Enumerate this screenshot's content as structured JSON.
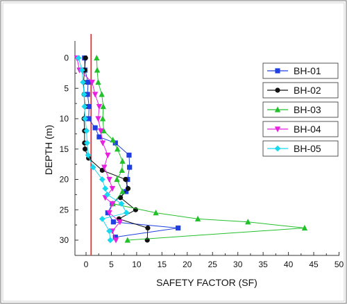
{
  "chart_data": {
    "type": "line",
    "title": "",
    "xlabel": "SAFETY FACTOR (SF)",
    "ylabel": "DEPTH (m)",
    "xlim": [
      -2,
      50
    ],
    "ylim": [
      -3,
      32
    ],
    "y_inverted": true,
    "x_ticks": [
      0,
      5,
      10,
      15,
      20,
      25,
      30,
      35,
      40,
      45,
      50
    ],
    "y_ticks": [
      0,
      5,
      10,
      15,
      20,
      25,
      30
    ],
    "x_tick_labels": [
      "0",
      "5",
      "10",
      "15",
      "20",
      "25",
      "30",
      "35",
      "40",
      "45",
      "50"
    ],
    "y_tick_labels": [
      "0",
      "5",
      "10",
      "15",
      "20",
      "25",
      "30"
    ],
    "grid": false,
    "legend_position": "right",
    "reference_line": {
      "x": 1,
      "color": "#e8303a"
    },
    "series": [
      {
        "name": "BH-01",
        "color": "#1f3fe0",
        "marker": "square",
        "x": [
          -0.3,
          -0.2,
          0.4,
          0.3,
          0.6,
          0.5,
          1.8,
          2.6,
          5.8,
          8.5,
          8.6,
          8.2,
          7.9,
          5.2,
          4.3,
          5.4,
          18.2,
          5.8
        ],
        "y": [
          0,
          2,
          4,
          6,
          8,
          10,
          11.5,
          13,
          14,
          16,
          18,
          20,
          22,
          24,
          25.5,
          27,
          28,
          29.5
        ]
      },
      {
        "name": "BH-02",
        "color": "#111111",
        "marker": "circle",
        "x": [
          -0.1,
          -0.3,
          -0.5,
          -0.4,
          -0.2,
          -0.4,
          -0.3,
          -0.3,
          -0.2,
          0.5,
          3.2,
          7.8,
          8.3,
          6.8,
          9.8,
          6.5,
          12.2,
          12.1
        ],
        "y": [
          0,
          2,
          4,
          6,
          8,
          10,
          12,
          14,
          15,
          16.5,
          18.5,
          20,
          21.5,
          23,
          25,
          26.5,
          28,
          30
        ]
      },
      {
        "name": "BH-03",
        "color": "#22c02a",
        "marker": "triangle-up",
        "x": [
          2.1,
          2.2,
          2.4,
          3.1,
          3.4,
          3.3,
          3.5,
          5.3,
          6.2,
          7.2,
          7.1,
          6.1,
          7.2,
          5.3,
          13.8,
          22.1,
          32.0,
          43.2,
          8.2
        ],
        "y": [
          0,
          2,
          4,
          6,
          8,
          10,
          12,
          13.5,
          15,
          17,
          18.5,
          20,
          22,
          24,
          25.5,
          26.5,
          27,
          28,
          30
        ]
      },
      {
        "name": "BH-04",
        "color": "#e81fe0",
        "marker": "triangle-down",
        "x": [
          -1.8,
          -1.3,
          1.2,
          1.8,
          2.6,
          2.4,
          2.9,
          3.3,
          4.3,
          3.6,
          4.6,
          5.2,
          3.8,
          5.2,
          4.6,
          6.7,
          5.2,
          5.9
        ],
        "y": [
          0,
          2,
          4,
          6,
          8,
          10,
          12,
          14,
          16,
          18,
          20,
          21.5,
          23,
          24,
          25.5,
          27,
          28.5,
          30
        ]
      },
      {
        "name": "BH-05",
        "color": "#16d8ef",
        "marker": "diamond",
        "x": [
          -1.5,
          -0.8,
          -0.6,
          -0.4,
          -0.3,
          -0.2,
          0.1,
          0.2,
          0.4,
          1.4,
          3.2,
          3.8,
          4.2,
          7.0,
          8.0,
          3.2,
          4.6,
          4.8
        ],
        "y": [
          0,
          2,
          4,
          6,
          8,
          10,
          12,
          14,
          16,
          18,
          20,
          21.5,
          22.5,
          24,
          25.5,
          26.5,
          28.5,
          30
        ]
      }
    ]
  }
}
